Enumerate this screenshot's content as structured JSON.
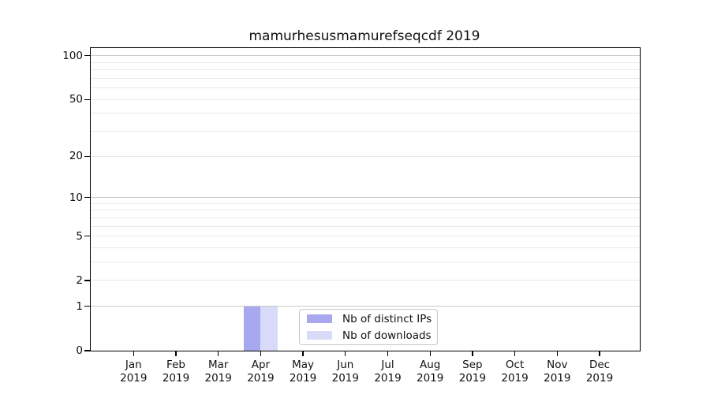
{
  "chart_data": {
    "type": "bar",
    "title": "mamurhesusmamurefseqcdf 2019",
    "categories": [
      "Jan",
      "Feb",
      "Mar",
      "Apr",
      "May",
      "Jun",
      "Jul",
      "Aug",
      "Sep",
      "Oct",
      "Nov",
      "Dec"
    ],
    "category_sublabel": "2019",
    "series": [
      {
        "name": "Nb of distinct IPs",
        "color": "#a8a8ef",
        "values": [
          0,
          0,
          0,
          1,
          0,
          0,
          0,
          0,
          0,
          0,
          0,
          0
        ]
      },
      {
        "name": "Nb of downloads",
        "color": "#d9d9f8",
        "values": [
          0,
          0,
          0,
          1,
          0,
          0,
          0,
          0,
          0,
          0,
          0,
          0
        ]
      }
    ],
    "xlabel": "",
    "ylabel": "",
    "y_scale": "log1p",
    "ylim": [
      0,
      113
    ],
    "y_major_ticks": [
      0,
      1,
      2,
      5,
      10,
      20,
      50,
      100
    ],
    "y_minor_gridlines": [
      3,
      4,
      6,
      7,
      8,
      9,
      30,
      40,
      60,
      70,
      80,
      90
    ],
    "grid": "on",
    "legend_position": "lower center",
    "colors": {
      "grid_decade": "#c9c9c9",
      "grid_minor": "#e9e9e9",
      "spine": "#000000",
      "text": "#111111",
      "legend_border": "#c8c8c8",
      "background": "#ffffff"
    }
  }
}
